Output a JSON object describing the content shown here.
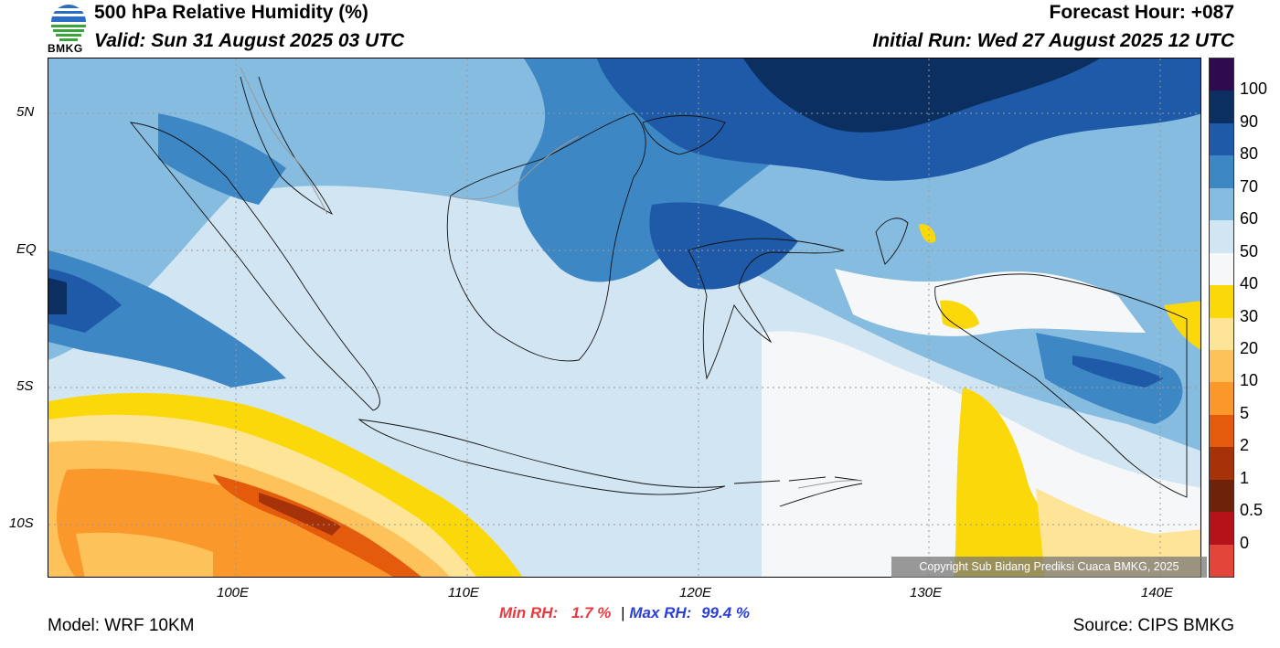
{
  "header": {
    "title": "500 hPa Relative Humidity (%)",
    "valid": "Valid: Sun 31 August 2025 03 UTC",
    "forecast_hour": "Forecast Hour: +087",
    "initial_run": "Initial Run: Wed 27 August 2025 12 UTC",
    "logo_text": "BMKG"
  },
  "map": {
    "lat_labels": [
      "5N",
      "EQ",
      "5S",
      "10S"
    ],
    "lon_labels": [
      "100E",
      "110E",
      "120E",
      "130E",
      "140E"
    ],
    "copyright": "Copyright Sub Bidang Prediksi Cuaca BMKG, 2025"
  },
  "colorbar": {
    "labels": [
      "100",
      "90",
      "80",
      "70",
      "60",
      "50",
      "40",
      "30",
      "20",
      "10",
      "5",
      "2",
      "1",
      "0.5",
      "0"
    ],
    "colors": [
      "#2e0b4f",
      "#0b2f60",
      "#1f5aa8",
      "#3d87c4",
      "#86bce0",
      "#d2e5f2",
      "#f5f7f8",
      "#fbd80a",
      "#fde496",
      "#fdc25a",
      "#fa982c",
      "#e35b0b",
      "#a53209",
      "#6e2209",
      "#b5121a",
      "#e3453a"
    ]
  },
  "footer": {
    "model": "Model: WRF 10KM",
    "min_label": "Min RH:",
    "min_value": "1.7 %",
    "separator": "|",
    "max_label": "Max RH:",
    "max_value": "99.4 %",
    "source": "Source: CIPS BMKG"
  },
  "colors": {
    "min_color": "#e8393e",
    "max_color": "#2a3fd6"
  }
}
